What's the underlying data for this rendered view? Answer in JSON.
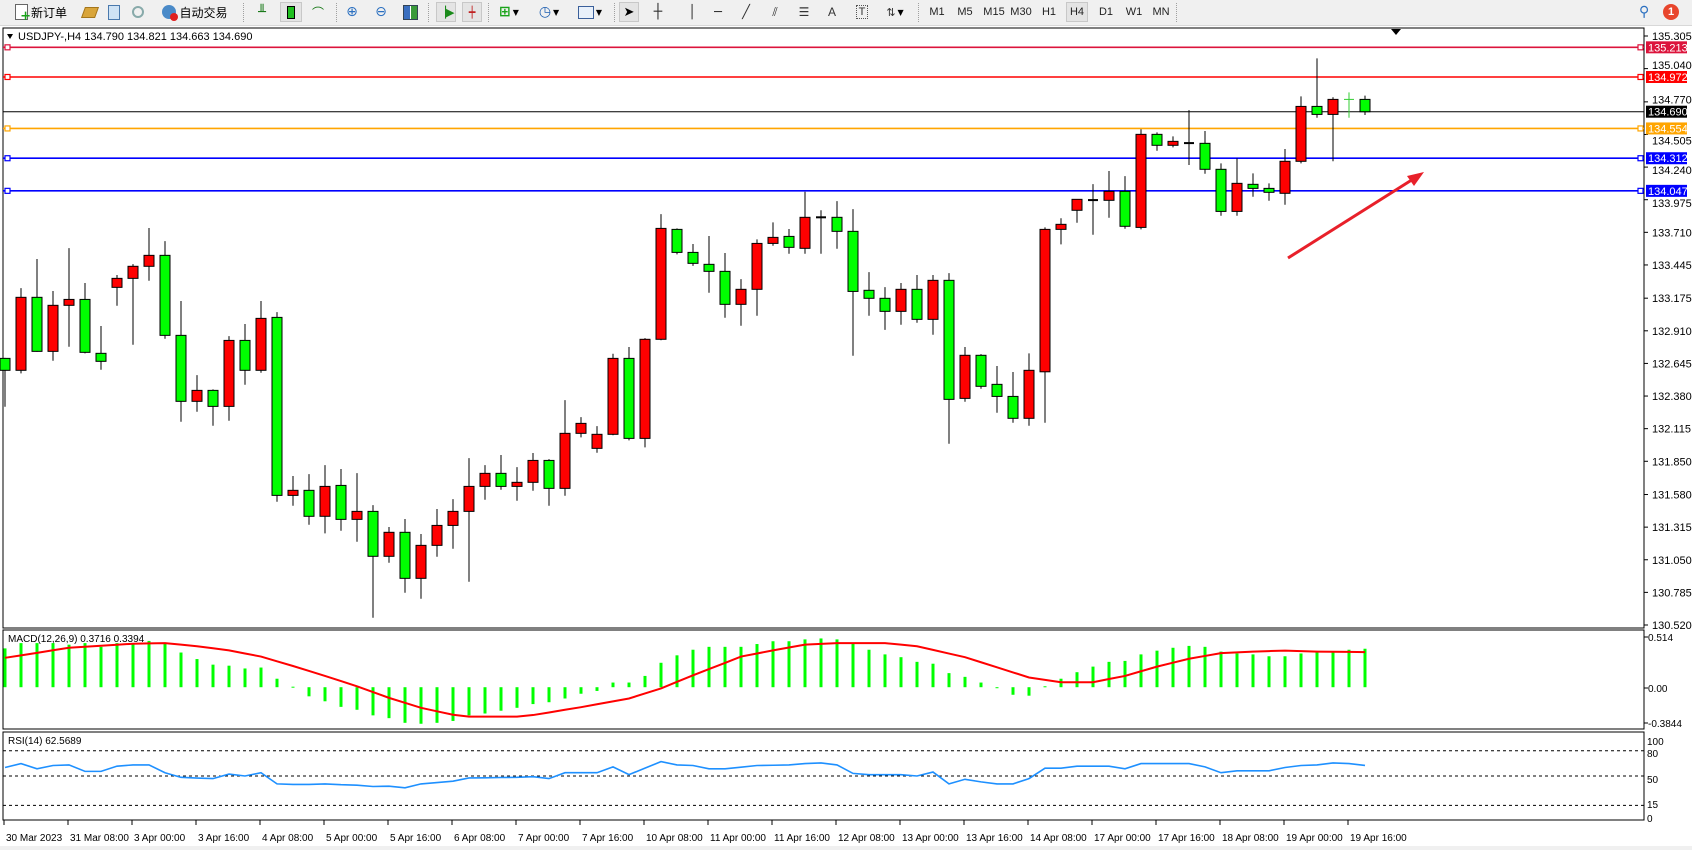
{
  "toolbar": {
    "new_order_label": "新订单",
    "auto_trading_label": "自动交易",
    "timeframes": [
      "M1",
      "M5",
      "M15",
      "M30",
      "H1",
      "H4",
      "D1",
      "W1",
      "MN"
    ],
    "active_timeframe": "H4",
    "notification_count": "1",
    "icons": [
      "new-order-icon",
      "gold-icon",
      "history-center-icon",
      "signal-icon",
      "auto-trading-icon",
      "bar-chart-icon",
      "candlestick-icon",
      "line-chart-icon",
      "zoom-in-icon",
      "zoom-out-icon",
      "tile-windows-icon",
      "auto-scroll-icon",
      "chart-shift-icon",
      "indicators-icon",
      "periods-icon",
      "templates-icon",
      "cursor-icon",
      "crosshair-icon",
      "vertical-line-icon",
      "horizontal-line-icon",
      "trendline-icon",
      "equidistant-channel-icon",
      "fibonacci-icon",
      "text-icon",
      "text-label-icon",
      "arrows-icon",
      "search-icon",
      "notification-icon"
    ]
  },
  "chart": {
    "info": "USDJPY-,H4  134.790 134.821 134.663 134.690",
    "symbol": "USDJPY-",
    "period": "H4",
    "ohlc_header": {
      "open": 134.79,
      "high": 134.821,
      "low": 134.663,
      "close": 134.69
    },
    "colors": {
      "bull_body": "#ff0000",
      "bear_body": "#00ff00",
      "wick": "#000000",
      "current_doji": "#32cd32",
      "bid_line": "#000000",
      "arrow": "#e8202a"
    },
    "price_axis": [
      "135.305",
      "135.040",
      "134.770",
      "134.505",
      "134.240",
      "133.975",
      "133.710",
      "133.445",
      "133.175",
      "132.910",
      "132.645",
      "132.380",
      "132.115",
      "131.850",
      "131.580",
      "131.315",
      "131.050",
      "130.785",
      "130.520"
    ],
    "levels": [
      {
        "price": 135.213,
        "label": "135.213",
        "color": "#dc143c"
      },
      {
        "price": 134.972,
        "label": "134.972",
        "color": "#ff0000"
      },
      {
        "price": 134.69,
        "label": "134.690",
        "color": "#000000"
      },
      {
        "price": 134.554,
        "label": "134.554",
        "color": "#ffa500"
      },
      {
        "price": 134.312,
        "label": "134.312",
        "color": "#0000ff"
      },
      {
        "price": 134.047,
        "label": "134.047",
        "color": "#0000ff"
      }
    ],
    "time_axis": [
      "30 Mar 2023",
      "31 Mar 08:00",
      "3 Apr 00:00",
      "3 Apr 16:00",
      "4 Apr 08:00",
      "5 Apr 00:00",
      "5 Apr 16:00",
      "6 Apr 08:00",
      "7 Apr 00:00",
      "7 Apr 16:00",
      "10 Apr 08:00",
      "11 Apr 00:00",
      "11 Apr 16:00",
      "12 Apr 08:00",
      "13 Apr 00:00",
      "13 Apr 16:00",
      "14 Apr 08:00",
      "17 Apr 00:00",
      "17 Apr 16:00",
      "18 Apr 08:00",
      "19 Apr 00:00",
      "19 Apr 16:00"
    ],
    "macd": {
      "label": "MACD(12,26,9) 0.3716 0.3394",
      "axis": [
        "0.514",
        "0.00",
        "-0.3844"
      ],
      "hist_color": "#00ff00",
      "signal_color": "#ff0000"
    },
    "rsi": {
      "label": "RSI(14) 62.5689",
      "axis": [
        "100",
        "80",
        "50",
        "15",
        "0"
      ],
      "levels": [
        80,
        50,
        15
      ],
      "color": "#1e90ff"
    }
  },
  "chart_data": {
    "type": "candlestick",
    "timeframe": "H4",
    "ylim": [
      130.52,
      135.305
    ],
    "candles_ohlc": [
      [
        132.686,
        132.69,
        132.293,
        132.589
      ],
      [
        132.589,
        133.257,
        132.564,
        133.182
      ],
      [
        133.182,
        133.493,
        132.74,
        132.743
      ],
      [
        132.743,
        133.233,
        132.667,
        133.117
      ],
      [
        133.117,
        133.582,
        132.78,
        133.165
      ],
      [
        133.165,
        133.298,
        132.727,
        132.735
      ],
      [
        132.727,
        132.949,
        132.594,
        132.662
      ],
      [
        133.263,
        133.363,
        133.114,
        133.336
      ],
      [
        133.336,
        133.452,
        132.797,
        133.434
      ],
      [
        133.434,
        133.745,
        133.317,
        133.523
      ],
      [
        133.523,
        133.639,
        132.845,
        132.873
      ],
      [
        132.873,
        133.152,
        132.171,
        132.337
      ],
      [
        132.337,
        132.55,
        132.252,
        132.426
      ],
      [
        132.426,
        132.434,
        132.139,
        132.296
      ],
      [
        132.296,
        132.867,
        132.179,
        132.832
      ],
      [
        132.832,
        132.965,
        132.472,
        132.589
      ],
      [
        132.589,
        133.152,
        132.569,
        133.011
      ],
      [
        133.019,
        133.062,
        131.521,
        131.573
      ],
      [
        131.573,
        131.73,
        131.489,
        131.614
      ],
      [
        131.614,
        131.746,
        131.334,
        131.403
      ],
      [
        131.403,
        131.819,
        131.264,
        131.646
      ],
      [
        131.654,
        131.787,
        131.286,
        131.378
      ],
      [
        131.378,
        131.754,
        131.196,
        131.443
      ],
      [
        131.443,
        131.494,
        130.579,
        131.078
      ],
      [
        131.078,
        131.316,
        131.026,
        131.273
      ],
      [
        131.273,
        131.381,
        130.782,
        130.899
      ],
      [
        130.899,
        131.259,
        130.733,
        131.167
      ],
      [
        131.167,
        131.462,
        131.074,
        131.329
      ],
      [
        131.329,
        131.543,
        131.139,
        131.443
      ],
      [
        131.443,
        131.876,
        130.871,
        131.646
      ],
      [
        131.646,
        131.819,
        131.537,
        131.752
      ],
      [
        131.752,
        131.901,
        131.619,
        131.646
      ],
      [
        131.646,
        131.803,
        131.529,
        131.679
      ],
      [
        131.679,
        131.917,
        131.611,
        131.857
      ],
      [
        131.857,
        131.868,
        131.489,
        131.63
      ],
      [
        131.63,
        132.347,
        131.57,
        132.077
      ],
      [
        132.077,
        132.209,
        132.044,
        132.158
      ],
      [
        131.955,
        132.136,
        131.919,
        132.069
      ],
      [
        132.069,
        132.724,
        132.061,
        132.686
      ],
      [
        132.686,
        132.778,
        132.02,
        132.036
      ],
      [
        132.036,
        132.851,
        131.963,
        132.841
      ],
      [
        132.841,
        133.858,
        132.833,
        133.742
      ],
      [
        133.734,
        133.742,
        133.531,
        133.547
      ],
      [
        133.547,
        133.615,
        133.438,
        133.458
      ],
      [
        133.45,
        133.68,
        133.219,
        133.393
      ],
      [
        133.393,
        133.542,
        133.016,
        133.125
      ],
      [
        133.125,
        133.33,
        132.951,
        133.247
      ],
      [
        133.247,
        133.653,
        133.032,
        133.62
      ],
      [
        133.62,
        133.791,
        133.601,
        133.669
      ],
      [
        133.677,
        133.737,
        133.536,
        133.588
      ],
      [
        133.58,
        134.04,
        133.536,
        133.832
      ],
      [
        133.832,
        133.889,
        133.536,
        133.832
      ],
      [
        133.832,
        133.964,
        133.577,
        133.718
      ],
      [
        133.718,
        133.899,
        132.707,
        133.23
      ],
      [
        133.239,
        133.387,
        133.032,
        133.174
      ],
      [
        133.174,
        133.265,
        132.918,
        133.068
      ],
      [
        133.068,
        133.298,
        132.959,
        133.247
      ],
      [
        133.247,
        133.363,
        132.975,
        133.003
      ],
      [
        133.003,
        133.363,
        132.878,
        133.32
      ],
      [
        133.32,
        133.379,
        131.992,
        132.353
      ],
      [
        132.361,
        132.778,
        132.334,
        132.711
      ],
      [
        132.711,
        132.721,
        132.439,
        132.459
      ],
      [
        132.475,
        132.624,
        132.244,
        132.377
      ],
      [
        132.377,
        132.575,
        132.163,
        132.199
      ],
      [
        132.199,
        132.727,
        132.139,
        132.589
      ],
      [
        132.577,
        133.75,
        132.163,
        133.734
      ],
      [
        133.734,
        133.824,
        133.612,
        133.775
      ],
      [
        133.889,
        133.978,
        133.788,
        133.978
      ],
      [
        133.972,
        134.102,
        133.69,
        133.972
      ],
      [
        133.97,
        134.208,
        133.828,
        134.043
      ],
      [
        134.043,
        134.167,
        133.739,
        133.759
      ],
      [
        133.75,
        134.547,
        133.734,
        134.506
      ],
      [
        134.506,
        134.522,
        134.373,
        134.417
      ],
      [
        134.417,
        134.49,
        134.4,
        134.449
      ],
      [
        134.435,
        134.703,
        134.257,
        134.435
      ],
      [
        134.433,
        134.533,
        134.186,
        134.222
      ],
      [
        134.222,
        134.27,
        133.845,
        133.88
      ],
      [
        133.88,
        134.311,
        133.845,
        134.108
      ],
      [
        134.1,
        134.189,
        133.999,
        134.067
      ],
      [
        134.067,
        134.108,
        133.967,
        134.035
      ],
      [
        134.027,
        134.387,
        133.934,
        134.287
      ],
      [
        134.287,
        134.815,
        134.27,
        134.733
      ],
      [
        134.733,
        135.123,
        134.641,
        134.668
      ],
      [
        134.668,
        134.807,
        134.287,
        134.79
      ],
      [
        134.79,
        134.847,
        134.641,
        134.79
      ],
      [
        134.79,
        134.821,
        134.663,
        134.69
      ]
    ],
    "macd_hist": [
      0.375,
      0.426,
      0.426,
      0.426,
      0.411,
      0.426,
      0.39,
      0.426,
      0.426,
      0.447,
      0.426,
      0.335,
      0.272,
      0.218,
      0.208,
      0.181,
      0.19,
      0.082,
      0.005,
      -0.088,
      -0.136,
      -0.19,
      -0.218,
      -0.272,
      -0.299,
      -0.344,
      -0.353,
      -0.344,
      -0.326,
      -0.272,
      -0.254,
      -0.227,
      -0.199,
      -0.163,
      -0.145,
      -0.109,
      -0.063,
      -0.036,
      0.045,
      0.045,
      0.109,
      0.236,
      0.308,
      0.362,
      0.39,
      0.39,
      0.39,
      0.417,
      0.444,
      0.444,
      0.462,
      0.471,
      0.462,
      0.426,
      0.362,
      0.317,
      0.29,
      0.245,
      0.227,
      0.136,
      0.1,
      0.045,
      -0.006,
      -0.073,
      -0.082,
      0.009,
      0.082,
      0.145,
      0.199,
      0.245,
      0.254,
      0.317,
      0.353,
      0.381,
      0.399,
      0.39,
      0.344,
      0.326,
      0.317,
      0.299,
      0.299,
      0.326,
      0.335,
      0.344,
      0.362,
      0.3716
    ],
    "macd_signal": [
      0.284,
      0.308,
      0.332,
      0.357,
      0.381,
      0.391,
      0.401,
      0.41,
      0.42,
      0.423,
      0.426,
      0.411,
      0.396,
      0.376,
      0.356,
      0.326,
      0.296,
      0.25,
      0.205,
      0.157,
      0.109,
      0.059,
      0.009,
      -0.047,
      -0.103,
      -0.151,
      -0.199,
      -0.233,
      -0.266,
      -0.284,
      -0.284,
      -0.284,
      -0.284,
      -0.269,
      -0.244,
      -0.218,
      -0.193,
      -0.165,
      -0.137,
      -0.109,
      -0.06,
      -0.012,
      0.052,
      0.115,
      0.175,
      0.235,
      0.296,
      0.326,
      0.356,
      0.384,
      0.411,
      0.419,
      0.426,
      0.426,
      0.426,
      0.426,
      0.411,
      0.396,
      0.361,
      0.325,
      0.29,
      0.241,
      0.192,
      0.143,
      0.094,
      0.071,
      0.048,
      0.048,
      0.048,
      0.079,
      0.109,
      0.154,
      0.199,
      0.237,
      0.275,
      0.302,
      0.329,
      0.337,
      0.344,
      0.349,
      0.353,
      0.349,
      0.344,
      0.342,
      0.341,
      0.3394
    ],
    "macd_ylim": [
      -0.3844,
      0.514
    ],
    "rsi": [
      60.1,
      64.8,
      58.6,
      62.5,
      63.2,
      55.5,
      55.5,
      61.7,
      63.2,
      63.2,
      53.9,
      48.4,
      47.6,
      46.9,
      52.3,
      50.0,
      53.9,
      40.6,
      39.9,
      39.9,
      40.6,
      39.6,
      39.1,
      37.5,
      37.9,
      36.0,
      40.6,
      42.2,
      43.8,
      47.7,
      47.9,
      48.2,
      48.4,
      49.2,
      46.9,
      53.9,
      53.9,
      53.9,
      60.9,
      51.6,
      59.4,
      67.1,
      63.2,
      62.5,
      58.6,
      58.6,
      60.5,
      62.5,
      62.8,
      63.2,
      64.8,
      65.6,
      63.2,
      53.1,
      51.6,
      51.6,
      51.6,
      50.0,
      54.7,
      40.6,
      46.1,
      43.0,
      40.6,
      40.6,
      46.9,
      59.3,
      59.3,
      61.7,
      61.7,
      61.7,
      58.6,
      64.8,
      64.8,
      64.8,
      64.8,
      60.9,
      53.9,
      56.2,
      56.2,
      56.2,
      60.1,
      62.5,
      63.2,
      65.6,
      64.8,
      62.5689
    ],
    "rsi_ylim": [
      0,
      100
    ]
  }
}
